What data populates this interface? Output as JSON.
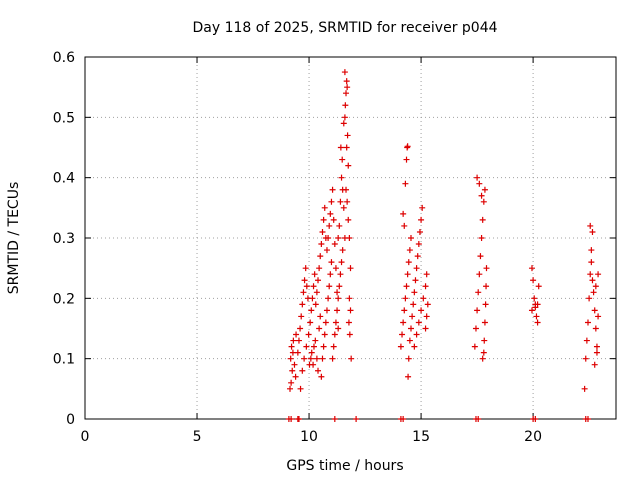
{
  "chart_data": {
    "type": "scatter",
    "title": "Day 118 of 2025, SRMTID for receiver p044",
    "xlabel": "GPS time / hours",
    "ylabel": "SRMTID / TECUs",
    "xlim": [
      0,
      23.7
    ],
    "ylim": [
      0,
      0.6
    ],
    "xticks": [
      0,
      5,
      10,
      15,
      20
    ],
    "yticks": [
      0,
      0.1,
      0.2,
      0.3,
      0.4,
      0.5,
      0.6
    ],
    "xtick_labels": [
      "0",
      "5",
      "10",
      "15",
      "20"
    ],
    "ytick_labels": [
      "0",
      "0.1",
      "0.2",
      "0.3",
      "0.4",
      "0.5",
      "0.6"
    ],
    "grid": true,
    "marker": "+",
    "color": "#dd0000",
    "series": [
      {
        "points": [
          [
            9.15,
            0.05
          ],
          [
            9.2,
            0.06
          ],
          [
            9.25,
            0.08
          ],
          [
            9.18,
            0.1
          ],
          [
            9.22,
            0.12
          ],
          [
            9.3,
            0.13
          ],
          [
            9.28,
            0.11
          ],
          [
            9.35,
            0.09
          ],
          [
            9.4,
            0.07
          ],
          [
            9.42,
            0.14
          ],
          [
            9.5,
            0.11
          ],
          [
            9.55,
            0.13
          ],
          [
            9.6,
            0.15
          ],
          [
            9.65,
            0.17
          ],
          [
            9.7,
            0.19
          ],
          [
            9.75,
            0.21
          ],
          [
            9.8,
            0.23
          ],
          [
            9.85,
            0.25
          ],
          [
            9.9,
            0.22
          ],
          [
            9.95,
            0.2
          ],
          [
            9.62,
            0.05
          ],
          [
            9.7,
            0.08
          ],
          [
            9.78,
            0.1
          ],
          [
            9.88,
            0.12
          ],
          [
            9.98,
            0.14
          ],
          [
            10.05,
            0.16
          ],
          [
            10.1,
            0.18
          ],
          [
            10.15,
            0.2
          ],
          [
            10.2,
            0.22
          ],
          [
            10.25,
            0.24
          ],
          [
            10.02,
            0.09
          ],
          [
            10.08,
            0.1
          ],
          [
            10.12,
            0.11
          ],
          [
            10.18,
            0.09
          ],
          [
            10.22,
            0.12
          ],
          [
            10.28,
            0.13
          ],
          [
            10.35,
            0.1
          ],
          [
            10.4,
            0.08
          ],
          [
            10.45,
            0.15
          ],
          [
            10.5,
            0.17
          ],
          [
            10.3,
            0.19
          ],
          [
            10.35,
            0.21
          ],
          [
            10.4,
            0.23
          ],
          [
            10.45,
            0.25
          ],
          [
            10.5,
            0.27
          ],
          [
            10.55,
            0.29
          ],
          [
            10.6,
            0.31
          ],
          [
            10.65,
            0.33
          ],
          [
            10.7,
            0.35
          ],
          [
            10.75,
            0.3
          ],
          [
            10.55,
            0.07
          ],
          [
            10.6,
            0.1
          ],
          [
            10.65,
            0.12
          ],
          [
            10.7,
            0.14
          ],
          [
            10.75,
            0.16
          ],
          [
            10.8,
            0.18
          ],
          [
            10.85,
            0.2
          ],
          [
            10.9,
            0.22
          ],
          [
            10.95,
            0.24
          ],
          [
            11.0,
            0.26
          ],
          [
            10.8,
            0.28
          ],
          [
            10.85,
            0.3
          ],
          [
            10.9,
            0.32
          ],
          [
            10.95,
            0.34
          ],
          [
            11.0,
            0.36
          ],
          [
            11.05,
            0.38
          ],
          [
            11.1,
            0.33
          ],
          [
            11.15,
            0.29
          ],
          [
            11.2,
            0.25
          ],
          [
            11.25,
            0.21
          ],
          [
            11.05,
            0.1
          ],
          [
            11.1,
            0.12
          ],
          [
            11.15,
            0.14
          ],
          [
            11.2,
            0.16
          ],
          [
            11.25,
            0.18
          ],
          [
            11.3,
            0.2
          ],
          [
            11.35,
            0.22
          ],
          [
            11.4,
            0.24
          ],
          [
            11.45,
            0.26
          ],
          [
            11.5,
            0.28
          ],
          [
            11.3,
            0.3
          ],
          [
            11.35,
            0.32
          ],
          [
            11.4,
            0.36
          ],
          [
            11.45,
            0.4
          ],
          [
            11.5,
            0.38
          ],
          [
            11.55,
            0.35
          ],
          [
            11.6,
            0.3
          ],
          [
            11.42,
            0.45
          ],
          [
            11.48,
            0.43
          ],
          [
            11.3,
            0.15
          ],
          [
            11.55,
            0.49
          ],
          [
            11.6,
            0.5
          ],
          [
            11.62,
            0.52
          ],
          [
            11.65,
            0.54
          ],
          [
            11.68,
            0.56
          ],
          [
            11.6,
            0.575
          ],
          [
            11.7,
            0.55
          ],
          [
            11.72,
            0.47
          ],
          [
            11.68,
            0.45
          ],
          [
            11.75,
            0.42
          ],
          [
            11.65,
            0.38
          ],
          [
            11.7,
            0.36
          ],
          [
            11.75,
            0.33
          ],
          [
            11.8,
            0.3
          ],
          [
            11.85,
            0.25
          ],
          [
            11.8,
            0.2
          ],
          [
            11.85,
            0.18
          ],
          [
            11.78,
            0.16
          ],
          [
            11.82,
            0.14
          ],
          [
            11.88,
            0.1
          ],
          [
            14.1,
            0.12
          ],
          [
            14.15,
            0.14
          ],
          [
            14.2,
            0.16
          ],
          [
            14.25,
            0.18
          ],
          [
            14.3,
            0.2
          ],
          [
            14.35,
            0.22
          ],
          [
            14.4,
            0.24
          ],
          [
            14.45,
            0.26
          ],
          [
            14.5,
            0.28
          ],
          [
            14.55,
            0.3
          ],
          [
            14.2,
            0.34
          ],
          [
            14.25,
            0.32
          ],
          [
            14.3,
            0.39
          ],
          [
            14.35,
            0.43
          ],
          [
            14.38,
            0.45
          ],
          [
            14.4,
            0.452
          ],
          [
            14.42,
            0.07
          ],
          [
            14.45,
            0.1
          ],
          [
            14.5,
            0.13
          ],
          [
            14.55,
            0.15
          ],
          [
            14.6,
            0.17
          ],
          [
            14.65,
            0.19
          ],
          [
            14.7,
            0.21
          ],
          [
            14.75,
            0.23
          ],
          [
            14.8,
            0.25
          ],
          [
            14.85,
            0.27
          ],
          [
            14.9,
            0.29
          ],
          [
            14.95,
            0.31
          ],
          [
            15.0,
            0.33
          ],
          [
            15.05,
            0.35
          ],
          [
            14.7,
            0.12
          ],
          [
            14.8,
            0.14
          ],
          [
            14.9,
            0.16
          ],
          [
            15.0,
            0.18
          ],
          [
            15.1,
            0.2
          ],
          [
            15.2,
            0.22
          ],
          [
            15.25,
            0.24
          ],
          [
            15.3,
            0.19
          ],
          [
            15.25,
            0.17
          ],
          [
            15.2,
            0.15
          ],
          [
            17.4,
            0.12
          ],
          [
            17.45,
            0.15
          ],
          [
            17.5,
            0.18
          ],
          [
            17.55,
            0.21
          ],
          [
            17.6,
            0.24
          ],
          [
            17.65,
            0.27
          ],
          [
            17.7,
            0.3
          ],
          [
            17.75,
            0.33
          ],
          [
            17.8,
            0.36
          ],
          [
            17.85,
            0.38
          ],
          [
            17.5,
            0.4
          ],
          [
            17.6,
            0.39
          ],
          [
            17.7,
            0.37
          ],
          [
            17.75,
            0.1
          ],
          [
            17.8,
            0.11
          ],
          [
            17.82,
            0.13
          ],
          [
            17.85,
            0.16
          ],
          [
            17.88,
            0.19
          ],
          [
            17.9,
            0.22
          ],
          [
            17.92,
            0.25
          ],
          [
            19.95,
            0.25
          ],
          [
            20.0,
            0.23
          ],
          [
            20.05,
            0.2
          ],
          [
            20.1,
            0.19
          ],
          [
            20.15,
            0.17
          ],
          [
            20.2,
            0.16
          ],
          [
            19.95,
            0.18
          ],
          [
            20.1,
            0.185
          ],
          [
            20.2,
            0.19
          ],
          [
            20.25,
            0.22
          ],
          [
            22.3,
            0.05
          ],
          [
            22.35,
            0.1
          ],
          [
            22.4,
            0.13
          ],
          [
            22.45,
            0.16
          ],
          [
            22.5,
            0.2
          ],
          [
            22.55,
            0.24
          ],
          [
            22.6,
            0.28
          ],
          [
            22.65,
            0.31
          ],
          [
            22.55,
            0.32
          ],
          [
            22.6,
            0.26
          ],
          [
            22.65,
            0.23
          ],
          [
            22.7,
            0.21
          ],
          [
            22.75,
            0.18
          ],
          [
            22.8,
            0.15
          ],
          [
            22.85,
            0.12
          ],
          [
            22.75,
            0.09
          ],
          [
            22.85,
            0.11
          ],
          [
            22.8,
            0.22
          ],
          [
            22.9,
            0.24
          ],
          [
            22.9,
            0.17
          ]
        ]
      },
      {
        "points": [
          [
            9.1,
            0
          ],
          [
            9.2,
            0
          ],
          [
            9.5,
            0
          ],
          [
            9.55,
            0
          ],
          [
            11.15,
            0
          ],
          [
            12.1,
            0
          ],
          [
            14.1,
            0
          ],
          [
            14.2,
            0
          ],
          [
            17.45,
            0
          ],
          [
            17.55,
            0
          ],
          [
            20.0,
            0
          ],
          [
            20.1,
            0
          ],
          [
            22.35,
            0
          ],
          [
            22.45,
            0
          ]
        ]
      }
    ]
  }
}
